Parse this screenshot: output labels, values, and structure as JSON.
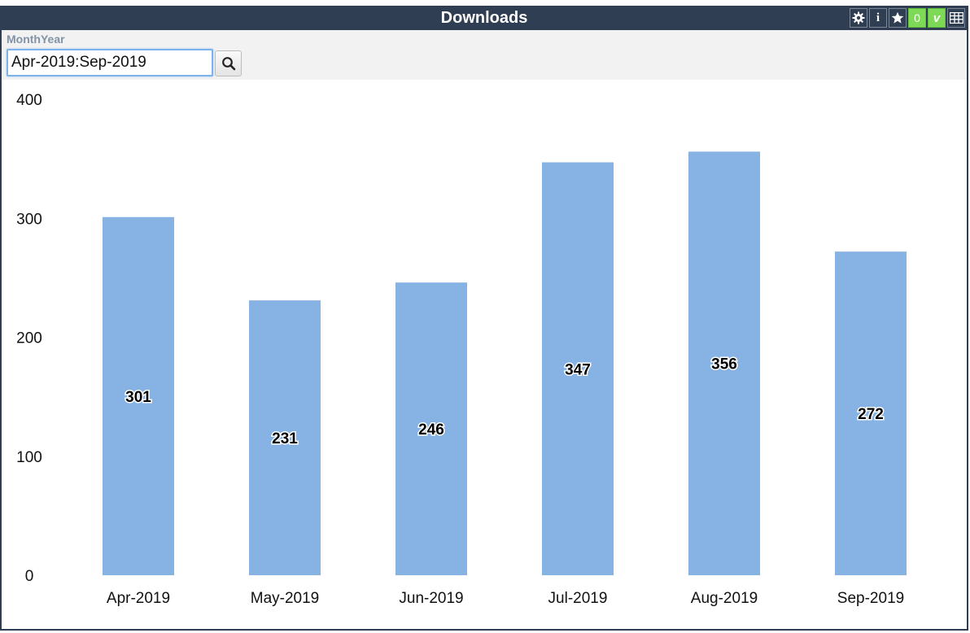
{
  "window": {
    "title": "Downloads"
  },
  "toolbar": {
    "icons": [
      "gear-icon",
      "info-icon",
      "star-icon",
      "zero-counter",
      "v-badge",
      "table-icon"
    ],
    "info_glyph": "i",
    "zero_label": "0",
    "v_label": "v"
  },
  "filter": {
    "label": "MonthYear",
    "value": "Apr-2019:Sep-2019"
  },
  "colors": {
    "header_bg": "#2f3e52",
    "bar_fill": "#87b3e4",
    "accent_green": "#7ed957"
  },
  "chart_data": {
    "type": "bar",
    "title": "",
    "xlabel": "",
    "ylabel": "",
    "categories": [
      "Apr-2019",
      "May-2019",
      "Jun-2019",
      "Jul-2019",
      "Aug-2019",
      "Sep-2019"
    ],
    "values": [
      301,
      231,
      246,
      347,
      356,
      272
    ],
    "ylim": [
      0,
      400
    ],
    "yticks": [
      0,
      100,
      200,
      300,
      400
    ],
    "grid": false,
    "legend": "none"
  }
}
